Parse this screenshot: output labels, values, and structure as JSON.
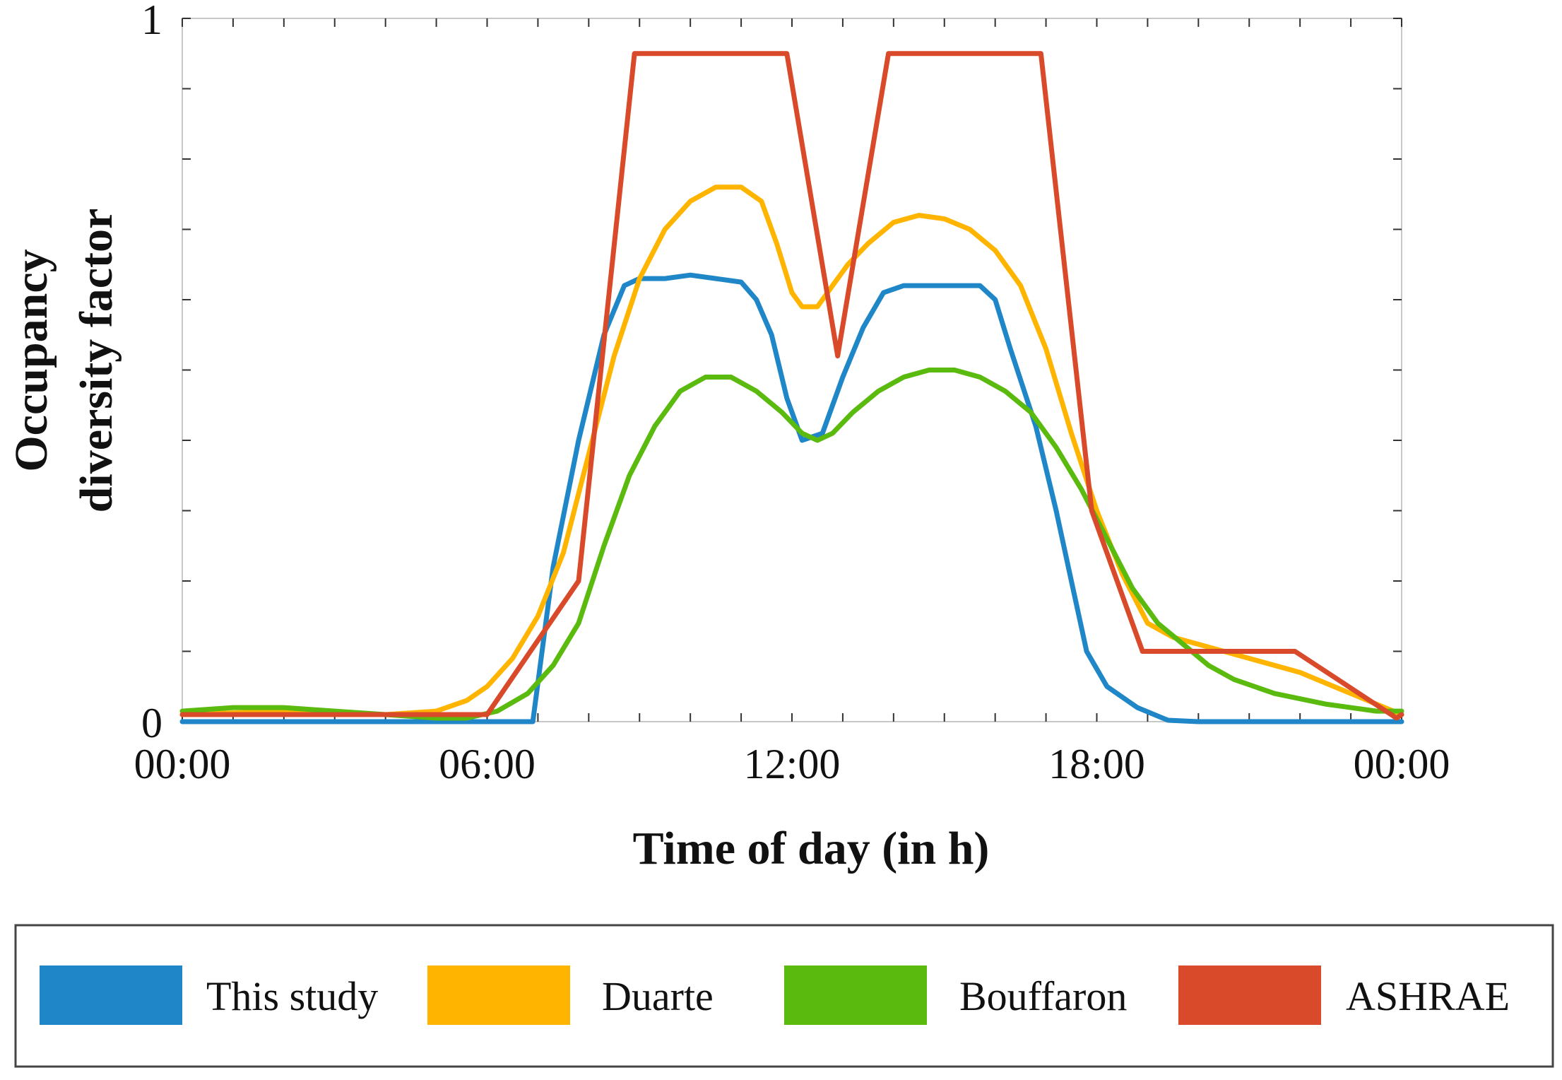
{
  "chart_data": {
    "type": "line",
    "title": "",
    "xlabel": "Time of day (in h)",
    "ylabel_lines": [
      "Occupancy",
      "diversity factor"
    ],
    "xlim": [
      0,
      24
    ],
    "ylim": [
      0,
      1
    ],
    "x_ticks": [
      {
        "value": 0,
        "label": "00:00"
      },
      {
        "value": 6,
        "label": "06:00"
      },
      {
        "value": 12,
        "label": "12:00"
      },
      {
        "value": 18,
        "label": "18:00"
      },
      {
        "value": 24,
        "label": "00:00"
      }
    ],
    "y_ticks": [
      {
        "value": 0,
        "label": "0"
      },
      {
        "value": 1,
        "label": "1"
      }
    ],
    "y_minor_step": 0.1,
    "x_minor_step": 1,
    "grid": false,
    "legend_position": "bottom",
    "series": [
      {
        "name": "This study",
        "color": "#1f86c8",
        "x": [
          0,
          6.9,
          7.3,
          7.8,
          8.3,
          8.7,
          9.0,
          9.5,
          10.0,
          10.5,
          11.0,
          11.3,
          11.6,
          11.9,
          12.2,
          12.6,
          13.0,
          13.4,
          13.8,
          14.2,
          15.0,
          15.7,
          16.0,
          16.3,
          16.8,
          17.2,
          17.5,
          17.8,
          18.2,
          18.8,
          19.4,
          20.0,
          24.0
        ],
        "y": [
          0,
          0,
          0.22,
          0.4,
          0.55,
          0.62,
          0.63,
          0.63,
          0.635,
          0.63,
          0.625,
          0.6,
          0.55,
          0.46,
          0.4,
          0.41,
          0.49,
          0.56,
          0.61,
          0.62,
          0.62,
          0.62,
          0.6,
          0.53,
          0.42,
          0.3,
          0.2,
          0.1,
          0.05,
          0.02,
          0.002,
          0,
          0
        ]
      },
      {
        "name": "Duarte",
        "color": "#ffb400",
        "x": [
          0,
          2,
          4,
          5,
          5.6,
          6.0,
          6.5,
          7.0,
          7.5,
          8.0,
          8.5,
          9.0,
          9.5,
          10.0,
          10.5,
          11.0,
          11.4,
          11.7,
          12.0,
          12.2,
          12.5,
          12.8,
          13.1,
          13.5,
          14.0,
          14.5,
          15.0,
          15.5,
          16.0,
          16.5,
          17.0,
          17.5,
          18.0,
          18.5,
          19.0,
          19.5,
          20.0,
          21.0,
          22.0,
          23.0,
          24.0
        ],
        "y": [
          0.01,
          0.015,
          0.01,
          0.015,
          0.03,
          0.05,
          0.09,
          0.15,
          0.24,
          0.38,
          0.52,
          0.63,
          0.7,
          0.74,
          0.76,
          0.76,
          0.74,
          0.68,
          0.61,
          0.59,
          0.59,
          0.62,
          0.65,
          0.68,
          0.71,
          0.72,
          0.715,
          0.7,
          0.67,
          0.62,
          0.53,
          0.41,
          0.3,
          0.21,
          0.14,
          0.12,
          0.11,
          0.09,
          0.07,
          0.04,
          0.01
        ]
      },
      {
        "name": "Bouffaron",
        "color": "#5aba0e",
        "x": [
          0,
          1,
          2,
          3,
          4,
          5,
          5.6,
          6.2,
          6.8,
          7.3,
          7.8,
          8.3,
          8.8,
          9.3,
          9.8,
          10.3,
          10.8,
          11.3,
          11.8,
          12.2,
          12.5,
          12.8,
          13.2,
          13.7,
          14.2,
          14.7,
          15.2,
          15.7,
          16.2,
          16.7,
          17.2,
          17.7,
          18.2,
          18.7,
          19.2,
          19.7,
          20.2,
          20.7,
          21.5,
          22.5,
          23.5,
          24.0
        ],
        "y": [
          0.015,
          0.02,
          0.02,
          0.015,
          0.01,
          0.005,
          0.005,
          0.015,
          0.04,
          0.08,
          0.14,
          0.25,
          0.35,
          0.42,
          0.47,
          0.49,
          0.49,
          0.47,
          0.44,
          0.41,
          0.4,
          0.41,
          0.44,
          0.47,
          0.49,
          0.5,
          0.5,
          0.49,
          0.47,
          0.44,
          0.39,
          0.33,
          0.26,
          0.19,
          0.14,
          0.11,
          0.08,
          0.06,
          0.04,
          0.025,
          0.015,
          0.015
        ]
      },
      {
        "name": "ASHRAE",
        "color": "#d94a2a",
        "x": [
          0,
          6.0,
          7.8,
          8.9,
          11.9,
          12.9,
          13.9,
          16.9,
          17.9,
          18.9,
          21.9,
          23.9,
          24.0
        ],
        "y": [
          0.01,
          0.01,
          0.2,
          0.95,
          0.95,
          0.52,
          0.95,
          0.95,
          0.3,
          0.1,
          0.1,
          0.005,
          0.01
        ]
      }
    ]
  }
}
